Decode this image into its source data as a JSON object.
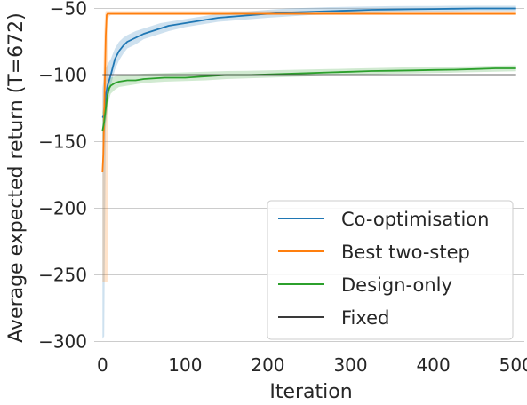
{
  "chart_data": {
    "type": "line",
    "xlabel": "Iteration",
    "ylabel": "Average expected return (T=672)",
    "xlim": [
      -10,
      510
    ],
    "ylim": [
      -305,
      -45
    ],
    "x_ticks": [
      0,
      100,
      200,
      300,
      400,
      500
    ],
    "y_ticks": [
      -50,
      -100,
      -150,
      -200,
      -250,
      -300
    ],
    "x_tick_labels": [
      "0",
      "100",
      "200",
      "300",
      "400",
      "500"
    ],
    "y_tick_labels": [
      "−50",
      "−100",
      "−150",
      "−200",
      "−250",
      "−300"
    ],
    "grid": true,
    "legend_position": "bottom-right",
    "series": [
      {
        "name": "Co-optimisation",
        "color": "#1f77b4",
        "x": [
          0,
          2,
          4,
          6,
          8,
          10,
          15,
          20,
          25,
          30,
          40,
          50,
          60,
          70,
          80,
          100,
          120,
          140,
          160,
          180,
          200,
          225,
          250,
          275,
          300,
          325,
          350,
          375,
          400,
          425,
          450,
          475,
          500
        ],
        "y": [
          -132,
          -130,
          -115,
          -108,
          -104,
          -100,
          -88,
          -82,
          -78,
          -75,
          -72,
          -69,
          -67,
          -65,
          -63,
          -61,
          -59,
          -57,
          -56,
          -55,
          -54,
          -53,
          -52.5,
          -52,
          -51.5,
          -51,
          -50.8,
          -50.6,
          -50.4,
          -50.2,
          -50,
          -50,
          -50
        ],
        "band_lower": [
          -298,
          -296,
          -140,
          -122,
          -114,
          -108,
          -96,
          -89,
          -84,
          -80,
          -77,
          -73,
          -71,
          -69,
          -67,
          -64,
          -62,
          -60,
          -59,
          -58,
          -57,
          -56,
          -55,
          -54.5,
          -54,
          -53.5,
          -53,
          -52.8,
          -52.5,
          -52.3,
          -52,
          -52,
          -52
        ],
        "band_upper": [
          -110,
          -100,
          -95,
          -92,
          -90,
          -88,
          -80,
          -75,
          -72,
          -70,
          -67,
          -65,
          -63,
          -61,
          -60,
          -58,
          -56,
          -54,
          -53,
          -52,
          -51,
          -50,
          -49.5,
          -49,
          -48.7,
          -48.5,
          -48.3,
          -48.2,
          -48.1,
          -48,
          -48,
          -48,
          -48
        ]
      },
      {
        "name": "Best two-step",
        "color": "#ff7f0e",
        "x": [
          0,
          1,
          2,
          3,
          4,
          5,
          6,
          7,
          8,
          10,
          500
        ],
        "y": [
          -173,
          -160,
          -130,
          -100,
          -70,
          -55,
          -54,
          -54,
          -54,
          -54,
          -54
        ],
        "band_lower": [
          -255,
          -255,
          -255,
          -255,
          -255,
          -255,
          -255,
          -58,
          -56,
          -55,
          -55
        ],
        "band_upper": [
          -140,
          -100,
          -70,
          -55,
          -52,
          -52,
          -52,
          -52,
          -52,
          -52,
          -52
        ]
      },
      {
        "name": "Design-only",
        "color": "#2ca02c",
        "x": [
          0,
          2,
          4,
          6,
          8,
          10,
          15,
          20,
          30,
          40,
          50,
          75,
          100,
          125,
          150,
          175,
          200,
          225,
          250,
          275,
          300,
          325,
          350,
          375,
          400,
          425,
          450,
          475,
          500
        ],
        "y": [
          -142,
          -135,
          -125,
          -115,
          -110,
          -108,
          -106,
          -105,
          -104,
          -104,
          -103,
          -102,
          -102,
          -101,
          -100,
          -100,
          -99.5,
          -99,
          -98.5,
          -98,
          -97.5,
          -97,
          -96.8,
          -96.5,
          -96.2,
          -96,
          -95.5,
          -95,
          -95
        ],
        "band_lower": [
          -150,
          -145,
          -135,
          -125,
          -118,
          -114,
          -111,
          -109,
          -108,
          -107,
          -106,
          -105,
          -104.5,
          -104,
          -103,
          -102.5,
          -102,
          -101.5,
          -101,
          -100.5,
          -100,
          -99.5,
          -99,
          -98.8,
          -98.5,
          -98.2,
          -97.8,
          -97.5,
          -97.2
        ],
        "band_upper": [
          -128,
          -122,
          -115,
          -108,
          -104,
          -102,
          -101,
          -100.5,
          -100,
          -99.5,
          -99,
          -98.5,
          -98,
          -97.5,
          -97,
          -96.8,
          -96.5,
          -96.2,
          -95.8,
          -95.5,
          -95.2,
          -94.8,
          -94.5,
          -94.2,
          -94,
          -93.7,
          -93.4,
          -93,
          -92.7
        ]
      },
      {
        "name": "Fixed",
        "color": "#3a3a3a",
        "x": [
          0,
          500
        ],
        "y": [
          -100,
          -100
        ]
      }
    ]
  }
}
